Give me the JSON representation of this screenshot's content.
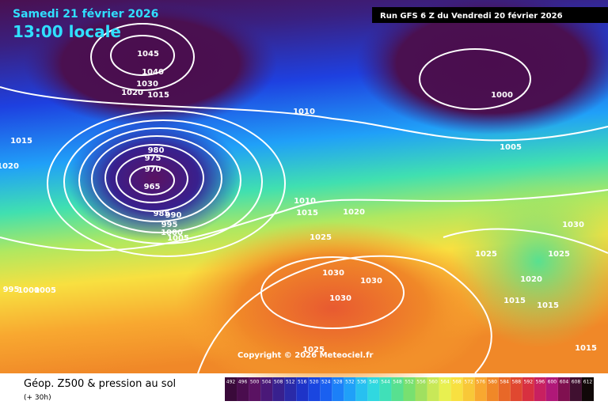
{
  "header": {
    "date": "Samedi 21 février 2026",
    "time": "13:00 locale",
    "run": "Run GFS 6 Z du Vendredi 20 février 2026"
  },
  "copyright": "Copyright © 2026 Meteociel.fr",
  "footer": {
    "title": "Géop. Z500 & pression au sol",
    "lead": "(+ 30h)"
  },
  "isobar_labels": [
    1045,
    1040,
    1030,
    1020,
    1015,
    1010,
    1015,
    1020,
    980,
    975,
    970,
    965,
    985,
    990,
    995,
    1000,
    1005,
    1010,
    1015,
    1020,
    1025,
    1030,
    1030,
    1030,
    1025,
    1000,
    1005,
    1030,
    1025,
    1025,
    1020,
    1015,
    1015,
    1015,
    995,
    1000,
    1005
  ],
  "scale": {
    "values": [
      492,
      496,
      500,
      504,
      508,
      512,
      516,
      520,
      524,
      528,
      532,
      536,
      540,
      544,
      548,
      552,
      556,
      560,
      564,
      568,
      572,
      576,
      580,
      584,
      588,
      592,
      596,
      600,
      604,
      608,
      612
    ],
    "colors": [
      "#3a0a3a",
      "#4a0d4e",
      "#5a1262",
      "#4a1878",
      "#38208e",
      "#2a2aa8",
      "#1e34c8",
      "#1a46e0",
      "#1a60f0",
      "#1c80f8",
      "#20a0f8",
      "#28c0f0",
      "#30d8e0",
      "#40e0b8",
      "#58e090",
      "#78e070",
      "#a0e060",
      "#c8e858",
      "#e8f050",
      "#f8e040",
      "#f8c838",
      "#f8a830",
      "#f08828",
      "#e86828",
      "#e04830",
      "#d83040",
      "#c82060",
      "#b01878",
      "#801050",
      "#401030",
      "#100808"
    ]
  }
}
